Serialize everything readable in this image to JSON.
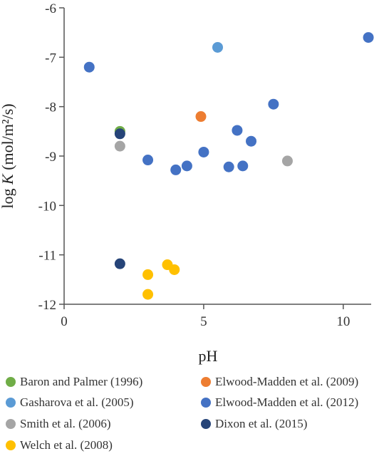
{
  "chart_data": {
    "type": "scatter",
    "xlabel": "pH",
    "ylabel_prefix": "log ",
    "ylabel_var": "K",
    "ylabel_suffix": " (mol/m²/s)",
    "xlim": [
      0,
      11
    ],
    "ylim": [
      -12,
      -6
    ],
    "x_ticks": [
      0,
      5,
      10
    ],
    "y_ticks": [
      -6,
      -7,
      -8,
      -9,
      -10,
      -11,
      -12
    ],
    "x_tick_labels": [
      "0",
      "5",
      "10"
    ],
    "y_tick_labels": [
      "-6",
      "-7",
      "-8",
      "-9",
      "-10",
      "-11",
      "-12"
    ],
    "grid": false,
    "legend_position": "bottom",
    "series": [
      {
        "name": "Baron and Palmer (1996)",
        "color": "#70ad47",
        "points": [
          [
            2.0,
            -8.5
          ]
        ]
      },
      {
        "name": "Elwood-Madden et al. (2009)",
        "color": "#ed7d31",
        "points": [
          [
            4.9,
            -8.2
          ]
        ]
      },
      {
        "name": "Gasharova et al. (2005)",
        "color": "#5b9bd5",
        "points": [
          [
            5.5,
            -6.8
          ]
        ]
      },
      {
        "name": "Elwood-Madden et al. (2012)",
        "color": "#4472c4",
        "points": [
          [
            0.9,
            -7.2
          ],
          [
            3.0,
            -9.08
          ],
          [
            4.0,
            -9.28
          ],
          [
            4.4,
            -9.2
          ],
          [
            5.0,
            -8.92
          ],
          [
            5.9,
            -9.22
          ],
          [
            6.2,
            -8.48
          ],
          [
            6.4,
            -9.2
          ],
          [
            6.7,
            -8.7
          ],
          [
            7.5,
            -7.95
          ],
          [
            10.9,
            -6.6
          ]
        ]
      },
      {
        "name": "Smith et al. (2006)",
        "color": "#a5a5a5",
        "points": [
          [
            2.0,
            -8.8
          ],
          [
            8.0,
            -9.1
          ]
        ]
      },
      {
        "name": "Dixon et al. (2015)",
        "color": "#264478",
        "points": [
          [
            2.0,
            -8.55
          ],
          [
            2.0,
            -11.18
          ]
        ]
      },
      {
        "name": "Welch et al. (2008)",
        "color": "#ffc000",
        "points": [
          [
            3.0,
            -11.4
          ],
          [
            3.0,
            -11.8
          ],
          [
            3.7,
            -11.2
          ],
          [
            3.95,
            -11.3
          ]
        ]
      }
    ]
  }
}
